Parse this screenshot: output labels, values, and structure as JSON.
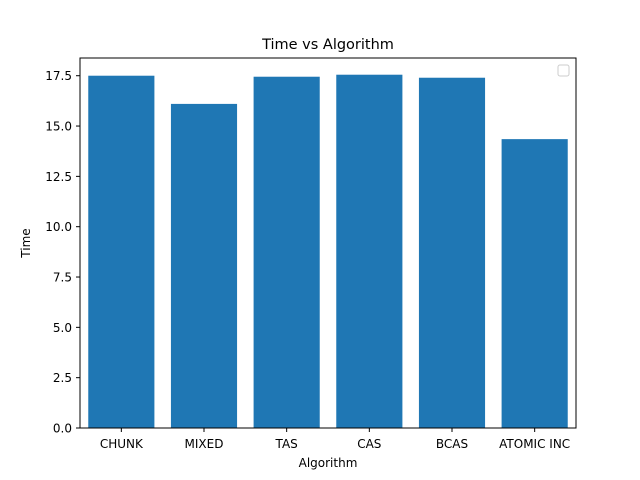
{
  "chart_data": {
    "type": "bar",
    "title": "Time vs Algorithm",
    "xlabel": "Algorithm",
    "ylabel": "Time",
    "categories": [
      "CHUNK",
      "MIXED",
      "TAS",
      "CAS",
      "BCAS",
      "ATOMIC INC"
    ],
    "values": [
      17.5,
      16.1,
      17.45,
      17.55,
      17.4,
      14.35
    ],
    "ylim": [
      0,
      18.38
    ],
    "yticks": [
      0.0,
      2.5,
      5.0,
      7.5,
      10.0,
      12.5,
      15.0,
      17.5
    ],
    "ytick_labels": [
      "0.0",
      "2.5",
      "5.0",
      "7.5",
      "10.0",
      "12.5",
      "15.0",
      "17.5"
    ],
    "bar_color": "#1f77b4",
    "grid": false,
    "legend_position": "top-right",
    "legend_entries": []
  }
}
